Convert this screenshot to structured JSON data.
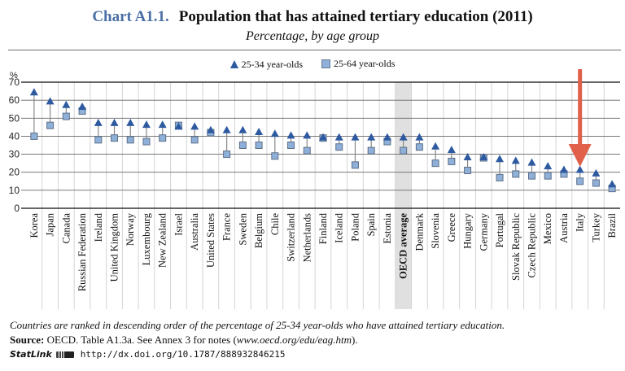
{
  "header": {
    "chart_number": "Chart A1.1.",
    "title": "Population that has attained tertiary education (2011)",
    "subtitle": "Percentage, by age group"
  },
  "legend": {
    "series_young": "25-34 year-olds",
    "series_all": "25-64 year-olds"
  },
  "annotation": {
    "arrow_target": "Italy",
    "arrow_color": "#e0604a"
  },
  "footer": {
    "note": "Countries are ranked in descending order of the percentage of 25-34 year-olds who have attained tertiary education.",
    "source_label": "Source:",
    "source_text": " OECD. Table A1.3a. See Annex 3 for notes (",
    "source_url": "www.oecd.org/edu/eag.htm",
    "source_end": ").",
    "statlink_label": "StatLink",
    "statlink_url": "http://dx.doi.org/10.1787/888932846215"
  },
  "colors": {
    "triangle": "#2d5aa0",
    "square_fill": "#8fb0d8",
    "square_stroke": "#5d6f88",
    "highlight_band": "#e0e0e0",
    "title_accent": "#4a6fa5"
  },
  "chart_data": {
    "type": "scatter",
    "title": "Population that has attained tertiary education (2011)",
    "subtitle": "Percentage, by age group",
    "ylabel": "%",
    "xlabel": "",
    "ylim": [
      0,
      70
    ],
    "yticks": [
      0,
      10,
      20,
      30,
      40,
      50,
      60,
      70
    ],
    "grid": true,
    "legend_position": "top-center",
    "highlight_category": "OECD average",
    "categories": [
      "Korea",
      "Japan",
      "Canada",
      "Russian Federation",
      "Ireland",
      "United Kingdom",
      "Norway",
      "Luxembourg",
      "New Zealand",
      "Israel",
      "Australia",
      "United States",
      "France",
      "Sweden",
      "Belgium",
      "Chile",
      "Switzerland",
      "Netherlands",
      "Finland",
      "Iceland",
      "Poland",
      "Spain",
      "Estonia",
      "OECD average",
      "Denmark",
      "Slovenia",
      "Greece",
      "Hungary",
      "Germany",
      "Portugal",
      "Slovak Republic",
      "Czech Republic",
      "Mexico",
      "Austria",
      "Italy",
      "Turkey",
      "Brazil"
    ],
    "series": [
      {
        "name": "25-34 year-olds",
        "marker": "triangle",
        "values": [
          64,
          59,
          57,
          56,
          47,
          47,
          47,
          46,
          46,
          45,
          45,
          43,
          43,
          43,
          42,
          41,
          40,
          40,
          39,
          39,
          39,
          39,
          39,
          39,
          39,
          34,
          32,
          28,
          28,
          27,
          26,
          25,
          23,
          21,
          21,
          19,
          13
        ]
      },
      {
        "name": "25-64 year-olds",
        "marker": "square",
        "values": [
          40,
          46,
          51,
          54,
          38,
          39,
          38,
          37,
          39,
          46,
          38,
          42,
          30,
          35,
          35,
          29,
          35,
          32,
          39,
          34,
          24,
          32,
          37,
          32,
          34,
          25,
          26,
          21,
          28,
          17,
          19,
          18,
          18,
          19,
          15,
          14,
          11
        ]
      }
    ]
  }
}
